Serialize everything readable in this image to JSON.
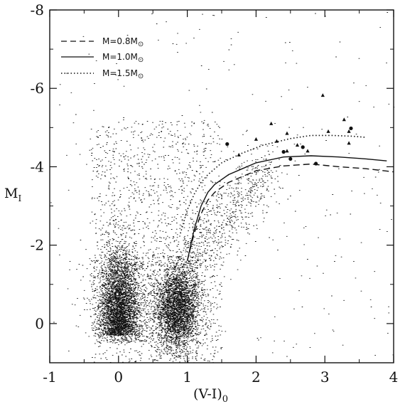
{
  "chart_data": {
    "type": "scatter",
    "title": "",
    "xlabel": "(V-I)",
    "xlabel_sub": "0",
    "ylabel": "M",
    "ylabel_sub": "I",
    "xlim": [
      -1,
      4
    ],
    "ylim": [
      1,
      -8
    ],
    "y_inverted": true,
    "grid": false,
    "legend_position": "top-left",
    "x_ticks": [
      -1,
      0,
      1,
      2,
      3,
      4
    ],
    "x_tick_labels": [
      "-1",
      "0",
      "1",
      "2",
      "3",
      "4"
    ],
    "y_ticks": [
      0,
      -2,
      -4,
      -6,
      -8
    ],
    "y_tick_labels": [
      "0",
      "-2",
      "-4",
      "-6",
      "-8"
    ],
    "legend": [
      {
        "label": "M=0.8M",
        "sub": "⊙",
        "style": "dashed"
      },
      {
        "label": "M=1.0M",
        "sub": "⊙",
        "style": "solid"
      },
      {
        "label": "M=1.5M",
        "sub": "⊙",
        "style": "dotted"
      }
    ],
    "series": [
      {
        "style": "dashed",
        "x": [
          1.0,
          1.1,
          1.2,
          1.3,
          1.4,
          1.6,
          1.8,
          2.0,
          2.4,
          2.8,
          3.2,
          3.6,
          4.0
        ],
        "y": [
          -1.6,
          -2.3,
          -2.8,
          -3.15,
          -3.35,
          -3.6,
          -3.75,
          -3.9,
          -4.02,
          -4.07,
          -4.0,
          -3.95,
          -3.87
        ]
      },
      {
        "style": "solid",
        "x": [
          1.0,
          1.1,
          1.2,
          1.3,
          1.4,
          1.6,
          1.8,
          2.0,
          2.4,
          2.8,
          3.2,
          3.6,
          3.9
        ],
        "y": [
          -1.6,
          -2.4,
          -3.0,
          -3.35,
          -3.55,
          -3.8,
          -3.95,
          -4.1,
          -4.25,
          -4.28,
          -4.25,
          -4.2,
          -4.15
        ]
      },
      {
        "style": "dotted",
        "x": [
          0.9,
          1.0,
          1.1,
          1.2,
          1.3,
          1.5,
          1.8,
          2.1,
          2.5,
          2.8,
          3.1,
          3.4,
          3.6
        ],
        "y": [
          -2.3,
          -2.9,
          -3.3,
          -3.6,
          -3.8,
          -4.1,
          -4.35,
          -4.55,
          -4.72,
          -4.8,
          -4.8,
          -4.78,
          -4.75
        ]
      }
    ],
    "points_triangle": [
      {
        "x": 2.97,
        "y": -5.82
      },
      {
        "x": 3.28,
        "y": -5.2
      },
      {
        "x": 2.22,
        "y": -5.1
      },
      {
        "x": 2.45,
        "y": -4.85
      },
      {
        "x": 3.05,
        "y": -4.9
      },
      {
        "x": 3.35,
        "y": -4.9
      },
      {
        "x": 2.0,
        "y": -4.7
      },
      {
        "x": 2.3,
        "y": -4.65
      },
      {
        "x": 3.35,
        "y": -4.6
      },
      {
        "x": 2.6,
        "y": -4.55
      },
      {
        "x": 2.45,
        "y": -4.4
      },
      {
        "x": 2.75,
        "y": -4.4
      },
      {
        "x": 1.75,
        "y": -4.3
      }
    ],
    "points_circle": [
      {
        "x": 1.58,
        "y": -4.58
      },
      {
        "x": 2.4,
        "y": -4.38
      },
      {
        "x": 2.68,
        "y": -4.5
      },
      {
        "x": 2.5,
        "y": -4.2
      },
      {
        "x": 3.38,
        "y": -4.98
      },
      {
        "x": 2.87,
        "y": -4.08
      }
    ]
  }
}
